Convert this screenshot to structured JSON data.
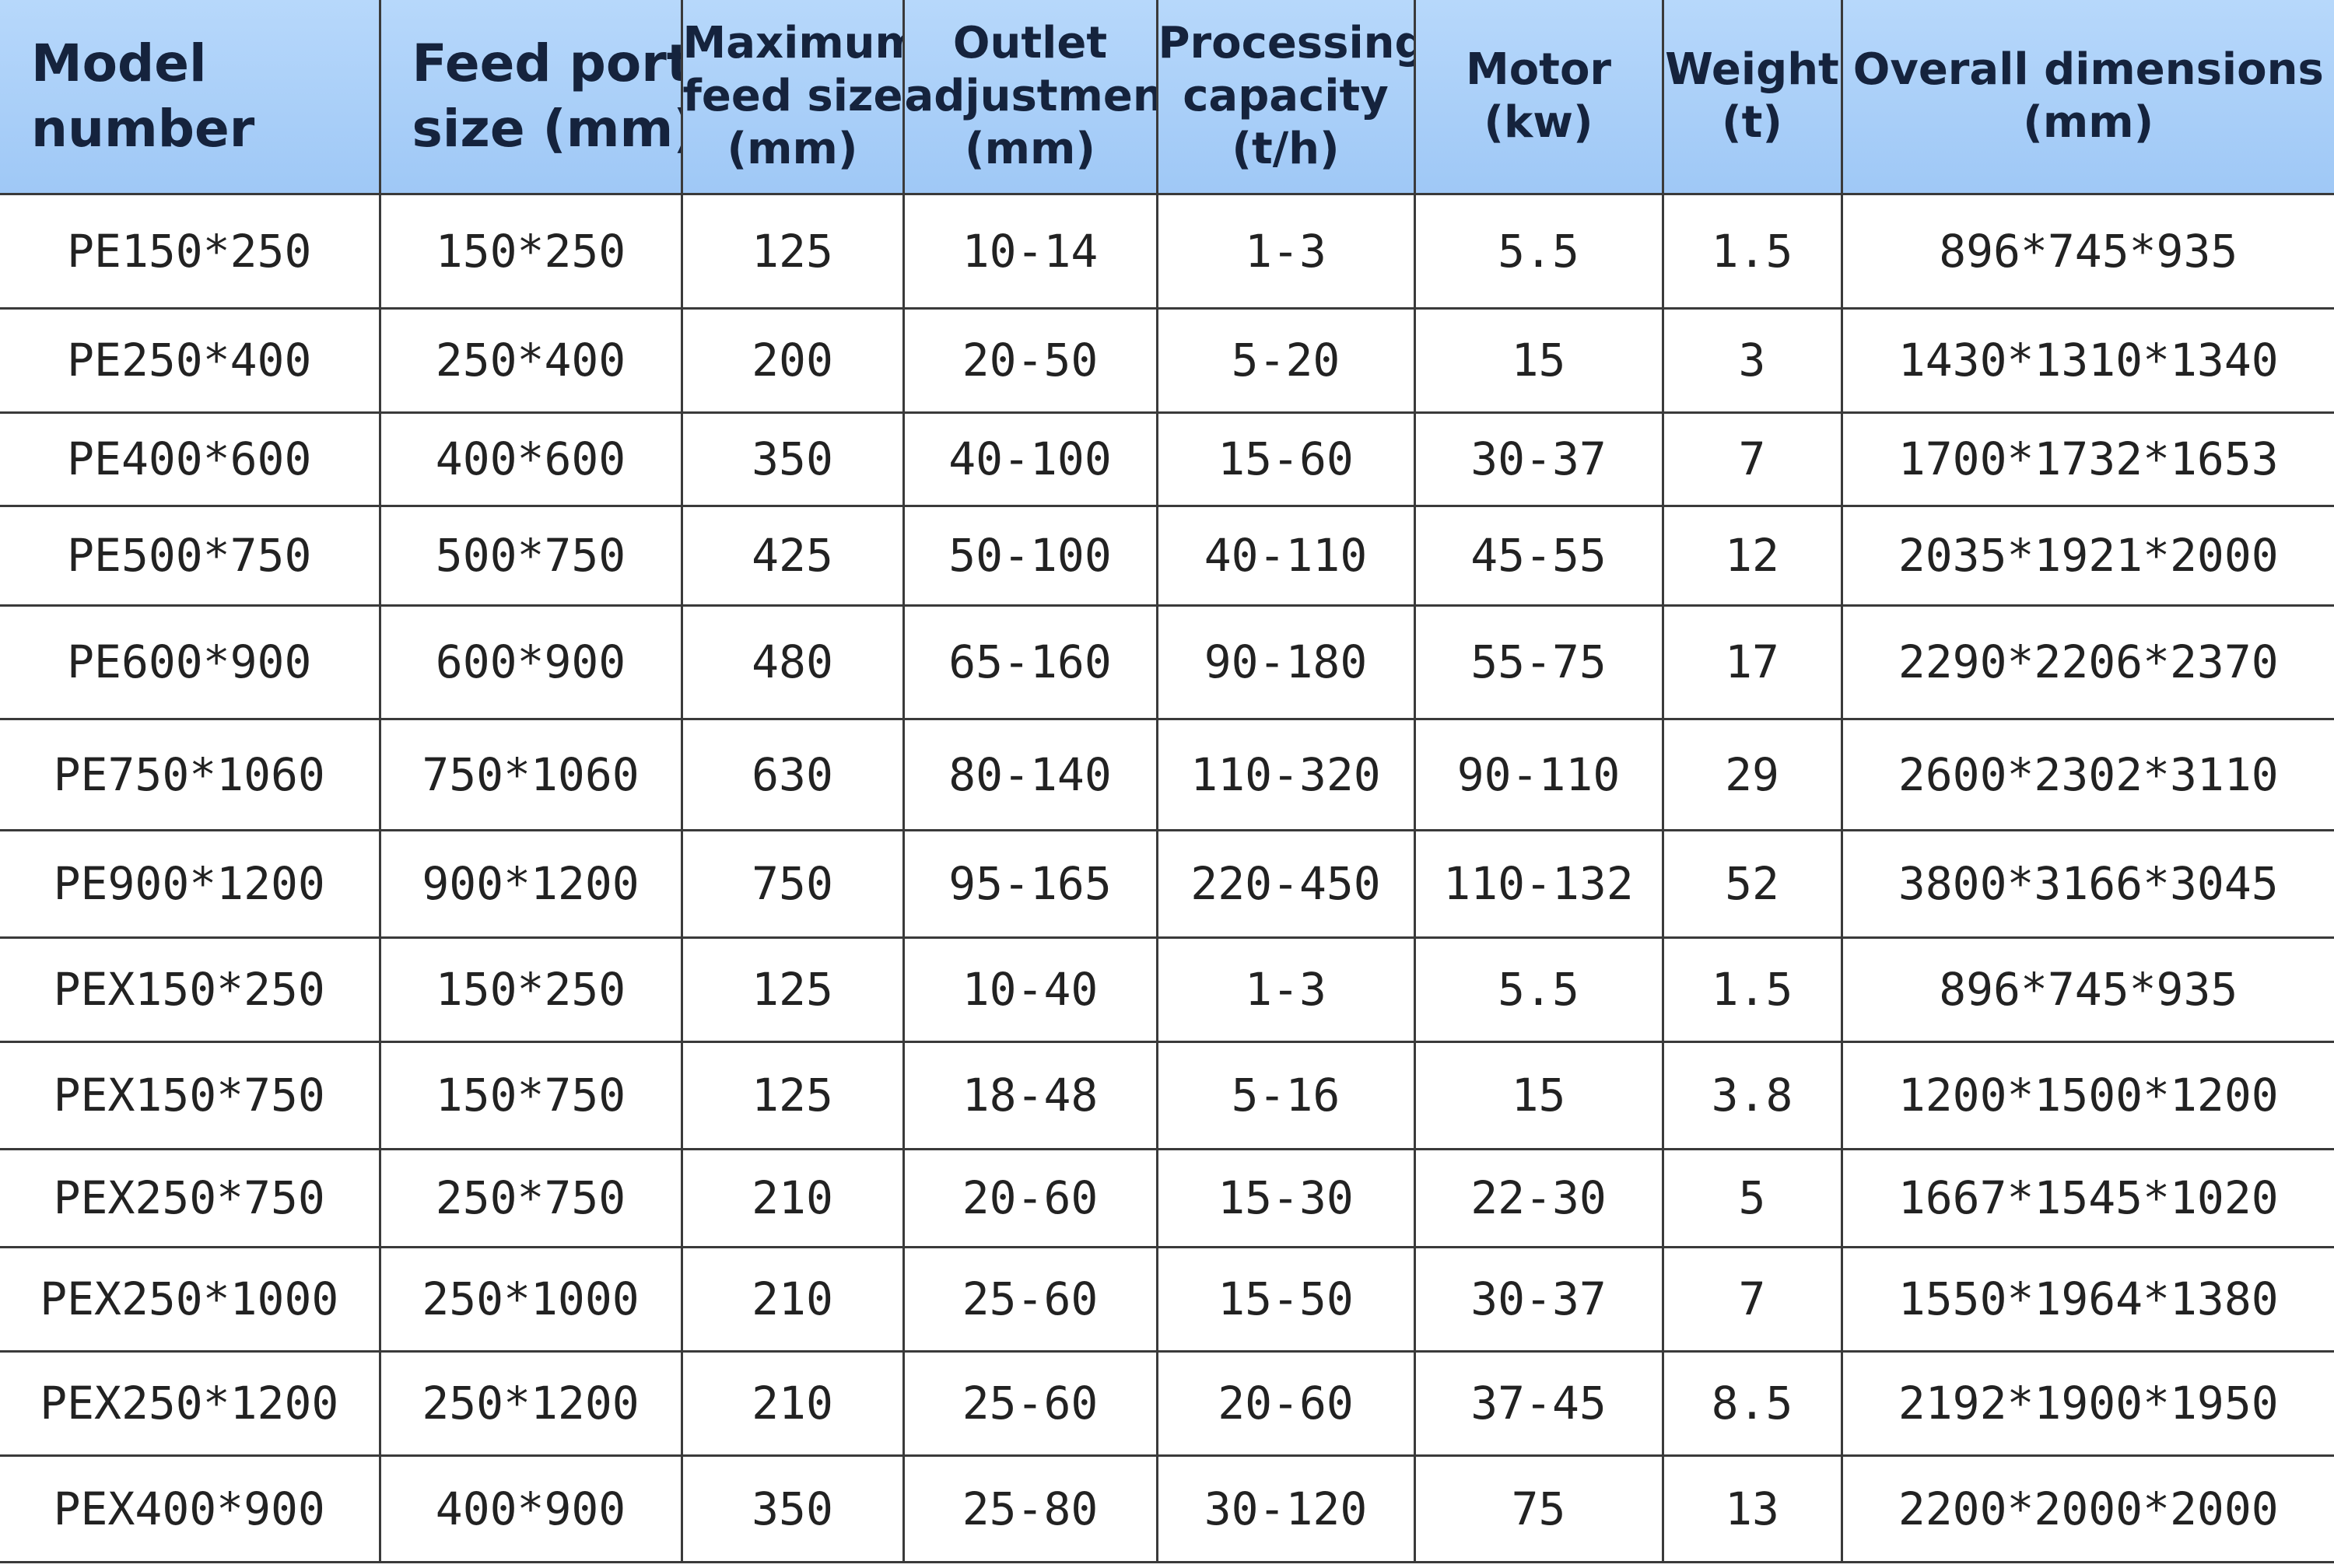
{
  "table": {
    "header": [
      [
        "Model",
        "number"
      ],
      [
        "Feed port",
        "size (mm)"
      ],
      [
        "Maximum",
        "feed size",
        "(mm)"
      ],
      [
        "Outlet",
        "adjustment",
        "(mm)"
      ],
      [
        "Processing",
        "capacity",
        "(t/h)"
      ],
      [
        "Motor",
        "(kw)"
      ],
      [
        "Weight",
        "(t)"
      ],
      [
        "Overall dimensions",
        "(mm)"
      ]
    ],
    "rows": [
      [
        "PE150*250",
        "150*250",
        "125",
        "10-14",
        "1-3",
        "5.5",
        "1.5",
        "896*745*935"
      ],
      [
        "PE250*400",
        "250*400",
        "200",
        "20-50",
        "5-20",
        "15",
        "3",
        "1430*1310*1340"
      ],
      [
        "PE400*600",
        "400*600",
        "350",
        "40-100",
        "15-60",
        "30-37",
        "7",
        "1700*1732*1653"
      ],
      [
        "PE500*750",
        "500*750",
        "425",
        "50-100",
        "40-110",
        "45-55",
        "12",
        "2035*1921*2000"
      ],
      [
        "PE600*900",
        "600*900",
        "480",
        "65-160",
        "90-180",
        "55-75",
        "17",
        "2290*2206*2370"
      ],
      [
        "PE750*1060",
        "750*1060",
        "630",
        "80-140",
        "110-320",
        "90-110",
        "29",
        "2600*2302*3110"
      ],
      [
        "PE900*1200",
        "900*1200",
        "750",
        "95-165",
        "220-450",
        "110-132",
        "52",
        "3800*3166*3045"
      ],
      [
        "PEX150*250",
        "150*250",
        "125",
        "10-40",
        "1-3",
        "5.5",
        "1.5",
        "896*745*935"
      ],
      [
        "PEX150*750",
        "150*750",
        "125",
        "18-48",
        "5-16",
        "15",
        "3.8",
        "1200*1500*1200"
      ],
      [
        "PEX250*750",
        "250*750",
        "210",
        "20-60",
        "15-30",
        "22-30",
        "5",
        "1667*1545*1020"
      ],
      [
        "PEX250*1000",
        "250*1000",
        "210",
        "25-60",
        "15-50",
        "30-37",
        "7",
        "1550*1964*1380"
      ],
      [
        "PEX250*1200",
        "250*1200",
        "210",
        "25-60",
        "20-60",
        "37-45",
        "8.5",
        "2192*1900*1950"
      ],
      [
        "PEX400*900",
        "400*900",
        "350",
        "25-80",
        "30-120",
        "75",
        "13",
        "2200*2000*2000"
      ]
    ]
  }
}
